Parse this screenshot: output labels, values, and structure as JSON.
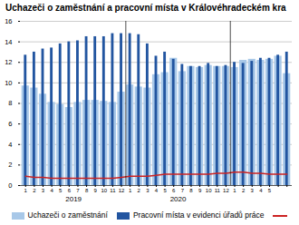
{
  "chart_data": {
    "type": "bar",
    "title": "Uchazeči o zaměstnání a pracovní místa v Královéhradeckém kra",
    "categories": [
      "1",
      "2",
      "3",
      "4",
      "5",
      "6",
      "7",
      "8",
      "9",
      "10",
      "11",
      "12",
      "1",
      "2",
      "3",
      "4",
      "5",
      "6",
      "7",
      "8",
      "9",
      "10",
      "11",
      "12",
      "1",
      "2",
      "3",
      "4",
      "5",
      null,
      null
    ],
    "series": [
      {
        "name": "Uchazeči o zaměstnání",
        "type": "bar",
        "color": "#a8c8e8",
        "values": [
          9.7,
          9.5,
          8.9,
          8.1,
          7.9,
          7.6,
          8.1,
          8.3,
          8.3,
          8.2,
          8.1,
          9.1,
          9.8,
          9.6,
          9.5,
          10.8,
          11.0,
          12.4,
          11.1,
          11.6,
          11.5,
          11.7,
          11.6,
          11.6,
          11.5,
          12.2,
          12.3,
          12.2,
          12.3,
          12.6,
          10.9
        ]
      },
      {
        "name": "Pracovní místa v evidenci úřadů práce",
        "type": "bar",
        "color": "#2255a0",
        "values": [
          12.7,
          13.0,
          13.3,
          13.4,
          13.8,
          14.0,
          14.1,
          14.5,
          14.5,
          14.5,
          14.8,
          14.8,
          14.8,
          14.7,
          13.8,
          12.6,
          13.0,
          12.3,
          11.8,
          11.6,
          11.6,
          11.9,
          11.6,
          11.7,
          12.0,
          11.9,
          12.1,
          12.4,
          12.4,
          12.7,
          13.0
        ]
      },
      {
        "type": "line",
        "color": "#cc2222",
        "values": [
          0.9,
          0.8,
          0.8,
          0.7,
          0.7,
          0.7,
          0.7,
          0.7,
          0.7,
          0.7,
          0.7,
          0.8,
          0.9,
          0.9,
          0.9,
          1.0,
          1.1,
          1.1,
          1.1,
          1.1,
          1.1,
          1.1,
          1.2,
          1.2,
          1.3,
          1.3,
          1.2,
          1.2,
          1.1,
          1.1,
          1.1
        ]
      }
    ],
    "ylim": [
      0,
      16
    ],
    "yticks": [
      0,
      2,
      4,
      6,
      8,
      10,
      12,
      14,
      16
    ],
    "grid": true,
    "legend": "bottom",
    "annotations": [
      "2019",
      "2020"
    ]
  }
}
